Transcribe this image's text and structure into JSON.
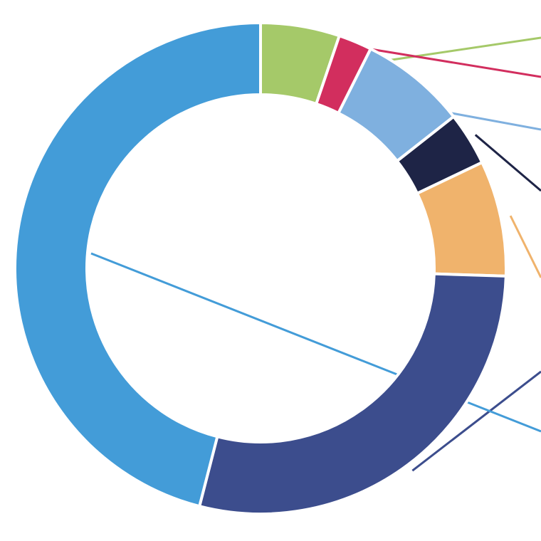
{
  "chart_data": {
    "type": "pie",
    "donut": true,
    "title": "",
    "slices": [
      {
        "value": 5.2,
        "color": "#a5c969"
      },
      {
        "value": 2.2,
        "color": "#d22e5e"
      },
      {
        "value": 7.0,
        "color": "#7fb0df"
      },
      {
        "value": 3.5,
        "color": "#1e2446"
      },
      {
        "value": 7.6,
        "color": "#f0b36c"
      },
      {
        "value": 28.5,
        "color": "#3c4d8d"
      },
      {
        "value": 46.0,
        "color": "#439cd8"
      }
    ]
  }
}
